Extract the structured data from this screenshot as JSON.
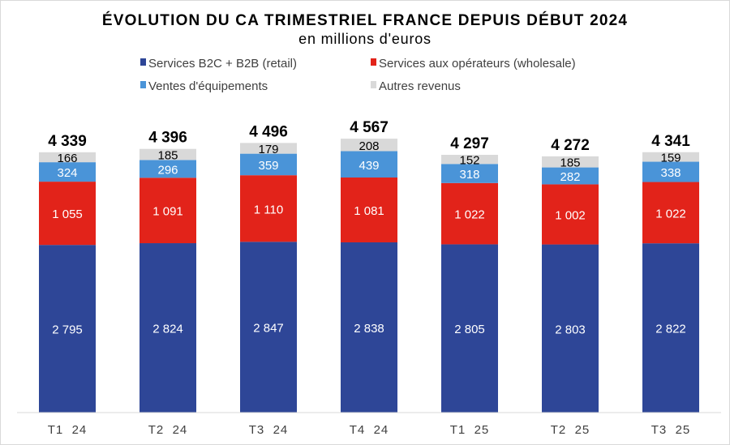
{
  "chart_data": {
    "type": "bar",
    "stacked": true,
    "title": "ÉVOLUTION DU CA TRIMESTRIEL FRANCE DEPUIS DÉBUT 2024",
    "subtitle": "en millions d'euros",
    "categories": [
      "T1  24",
      "T2  24",
      "T3  24",
      "T4  24",
      "T1  25",
      "T2  25",
      "T3  25"
    ],
    "totals": [
      "4 339",
      "4 396",
      "4 496",
      "4 567",
      "4 297",
      "4 272",
      "4 341"
    ],
    "series": [
      {
        "name": "Services B2C + B2B (retail)",
        "color": "#2e4697",
        "label_color": "#ffffff",
        "values": [
          2795,
          2824,
          2847,
          2838,
          2805,
          2803,
          2822
        ],
        "labels": [
          "2 795",
          "2 824",
          "2 847",
          "2 838",
          "2 805",
          "2 803",
          "2 822"
        ]
      },
      {
        "name": "Services aux opérateurs (wholesale)",
        "color": "#e2231a",
        "label_color": "#ffffff",
        "values": [
          1055,
          1091,
          1110,
          1081,
          1022,
          1002,
          1022
        ],
        "labels": [
          "1 055",
          "1 091",
          "1 110",
          "1 081",
          "1 022",
          "1 002",
          "1 022"
        ]
      },
      {
        "name": "Ventes d'équipements",
        "color": "#4a94d8",
        "label_color": "#ffffff",
        "values": [
          324,
          296,
          359,
          439,
          318,
          282,
          338
        ],
        "labels": [
          "324",
          "296",
          "359",
          "439",
          "318",
          "282",
          "338"
        ]
      },
      {
        "name": "Autres revenus",
        "color": "#d9d9d9",
        "label_color": "#000000",
        "values": [
          166,
          185,
          179,
          208,
          152,
          185,
          159
        ],
        "labels": [
          "166",
          "185",
          "179",
          "208",
          "152",
          "185",
          "159"
        ]
      }
    ],
    "legend_position": "top",
    "grid": false,
    "ylim": [
      0,
      4700
    ]
  }
}
